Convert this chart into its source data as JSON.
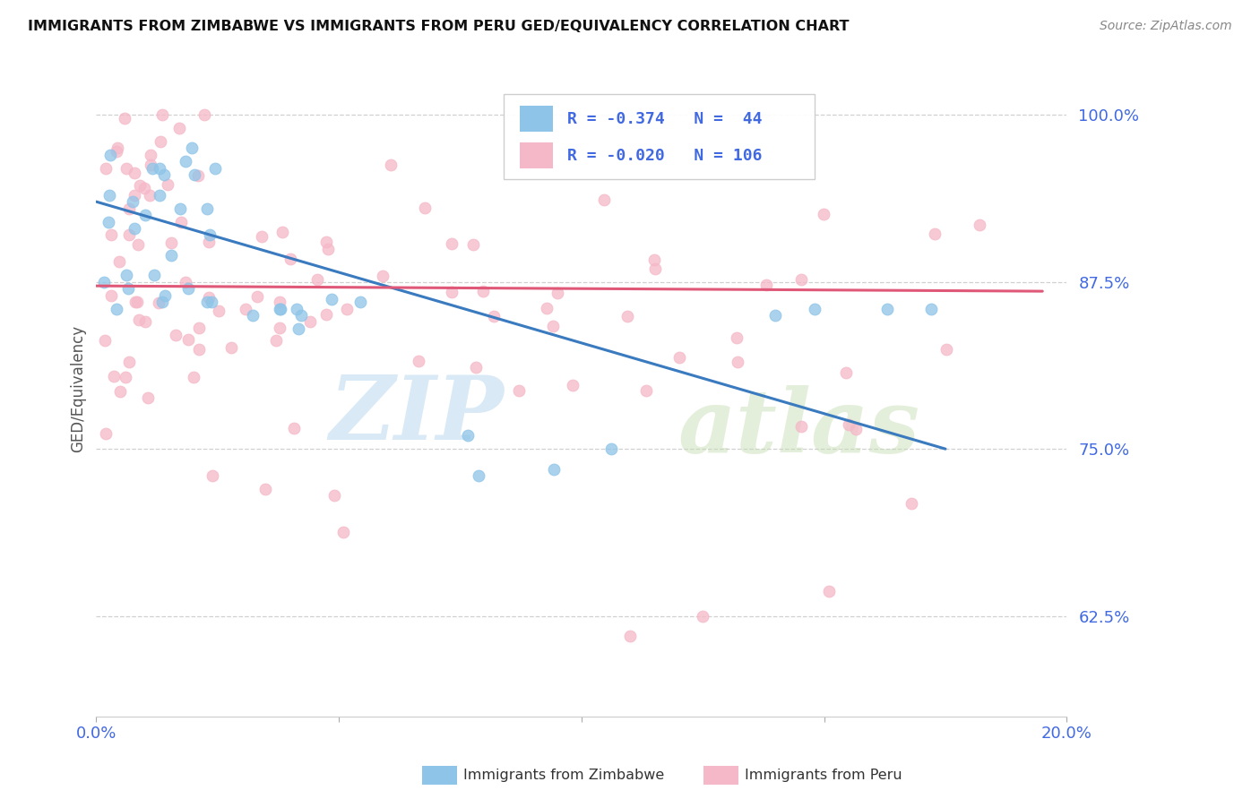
{
  "title": "IMMIGRANTS FROM ZIMBABWE VS IMMIGRANTS FROM PERU GED/EQUIVALENCY CORRELATION CHART",
  "source": "Source: ZipAtlas.com",
  "ylabel": "GED/Equivalency",
  "ytick_labels": [
    "100.0%",
    "87.5%",
    "75.0%",
    "62.5%"
  ],
  "ytick_values": [
    1.0,
    0.875,
    0.75,
    0.625
  ],
  "xlim": [
    0.0,
    0.2
  ],
  "ylim": [
    0.55,
    1.04
  ],
  "color_zimbabwe": "#8ec4e8",
  "color_peru": "#f5b8c8",
  "color_line_zimbabwe": "#3a7abf",
  "color_line_peru": "#e05878",
  "color_axis_labels": "#4169e1",
  "zim_line_x0": 0.0,
  "zim_line_y0": 0.935,
  "zim_line_x1": 0.175,
  "zim_line_y1": 0.75,
  "peru_line_x0": 0.0,
  "peru_line_y0": 0.872,
  "peru_line_x1": 0.195,
  "peru_line_y1": 0.868
}
